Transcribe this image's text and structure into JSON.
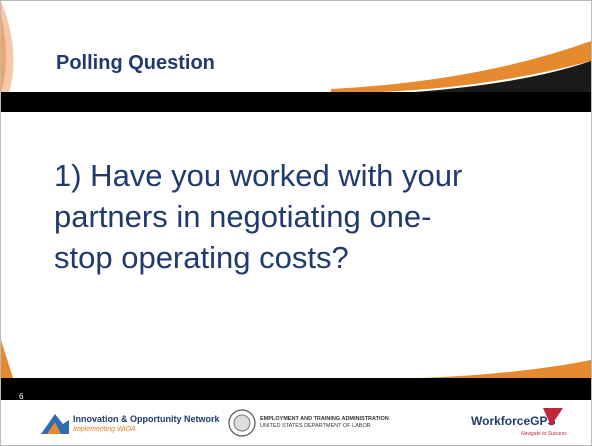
{
  "slide": {
    "title": "Polling Question",
    "question_lines": [
      "1) Have you worked with your",
      "partners in negotiating one-",
      "stop operating costs?"
    ],
    "page_number": "6"
  },
  "footer": {
    "ion": {
      "name": "Innovation & Opportunity Network",
      "tagline": "Implementing WIOA"
    },
    "eta": {
      "name": "EMPLOYMENT AND TRAINING ADMINISTRATION",
      "department": "UNITED STATES DEPARTMENT OF LABOR"
    },
    "gps": {
      "name": "WorkforceGPS",
      "tagline": "Navigate to Success"
    }
  }
}
